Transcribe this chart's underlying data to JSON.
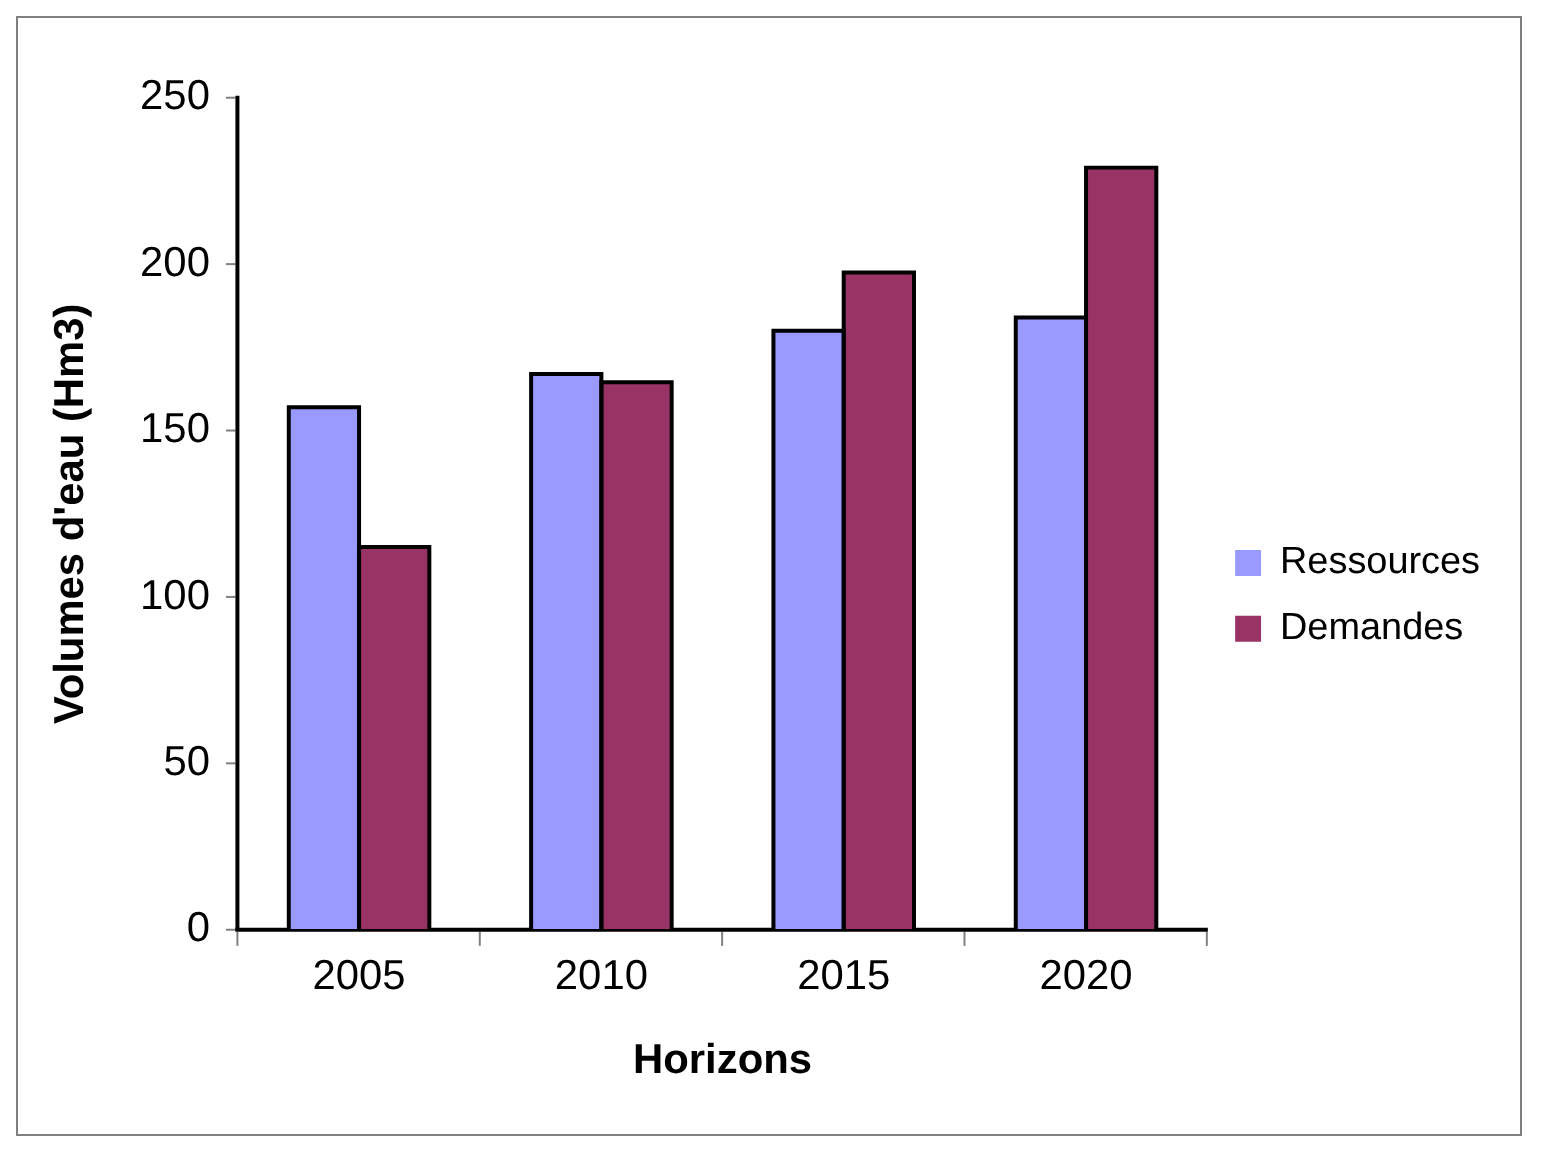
{
  "chart_data": {
    "type": "bar",
    "xlabel": "Horizons",
    "ylabel": "Volumes d'eau (Hm3)",
    "categories": [
      "2005",
      "2010",
      "2015",
      "2020"
    ],
    "series": [
      {
        "name": "Ressources",
        "color": "#9999ff",
        "values": [
          157,
          167,
          180,
          184
        ]
      },
      {
        "name": "Demandes",
        "color": "#993366",
        "values": [
          115,
          164.5,
          197.5,
          229
        ]
      }
    ],
    "ylim": [
      0,
      250
    ],
    "yticks": [
      0,
      50,
      100,
      150,
      200,
      250
    ],
    "grid": false,
    "legend": "right"
  }
}
